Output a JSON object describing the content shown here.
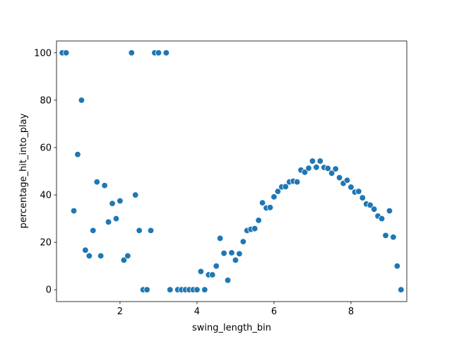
{
  "chart_data": {
    "type": "scatter",
    "xlabel": "swing_length_bin",
    "ylabel": "percentage_hit_into_play",
    "xlim": [
      0.35,
      9.45
    ],
    "ylim": [
      -5,
      105
    ],
    "x_ticks": [
      2,
      4,
      6,
      8
    ],
    "y_ticks": [
      0,
      20,
      40,
      60,
      80,
      100
    ],
    "grid": false,
    "marker_color": "#1f77b4",
    "marker_edge": "#ffffff",
    "points": [
      {
        "x": 0.5,
        "y": 100
      },
      {
        "x": 0.6,
        "y": 100
      },
      {
        "x": 0.8,
        "y": 33.3
      },
      {
        "x": 0.9,
        "y": 57.1
      },
      {
        "x": 1.0,
        "y": 80
      },
      {
        "x": 1.1,
        "y": 16.7
      },
      {
        "x": 1.2,
        "y": 14.3
      },
      {
        "x": 1.3,
        "y": 25
      },
      {
        "x": 1.4,
        "y": 45.5
      },
      {
        "x": 1.5,
        "y": 14.3
      },
      {
        "x": 1.6,
        "y": 44
      },
      {
        "x": 1.7,
        "y": 28.6
      },
      {
        "x": 1.8,
        "y": 36.4
      },
      {
        "x": 1.9,
        "y": 30
      },
      {
        "x": 2.0,
        "y": 37.5
      },
      {
        "x": 2.1,
        "y": 12.5
      },
      {
        "x": 2.2,
        "y": 14.3
      },
      {
        "x": 2.3,
        "y": 100
      },
      {
        "x": 2.4,
        "y": 40
      },
      {
        "x": 2.5,
        "y": 25
      },
      {
        "x": 2.6,
        "y": 0
      },
      {
        "x": 2.7,
        "y": 0
      },
      {
        "x": 2.8,
        "y": 25
      },
      {
        "x": 2.9,
        "y": 100
      },
      {
        "x": 3.0,
        "y": 100
      },
      {
        "x": 3.2,
        "y": 100
      },
      {
        "x": 3.3,
        "y": 0
      },
      {
        "x": 3.5,
        "y": 0
      },
      {
        "x": 3.6,
        "y": 0
      },
      {
        "x": 3.7,
        "y": 0
      },
      {
        "x": 3.8,
        "y": 0
      },
      {
        "x": 3.9,
        "y": 0
      },
      {
        "x": 4.0,
        "y": 0
      },
      {
        "x": 4.1,
        "y": 7.7
      },
      {
        "x": 4.2,
        "y": 0
      },
      {
        "x": 4.3,
        "y": 6.3
      },
      {
        "x": 4.4,
        "y": 6.3
      },
      {
        "x": 4.5,
        "y": 10
      },
      {
        "x": 4.6,
        "y": 21.7
      },
      {
        "x": 4.7,
        "y": 15.4
      },
      {
        "x": 4.8,
        "y": 4
      },
      {
        "x": 4.9,
        "y": 15.6
      },
      {
        "x": 5.0,
        "y": 12.5
      },
      {
        "x": 5.1,
        "y": 15.2
      },
      {
        "x": 5.2,
        "y": 20.3
      },
      {
        "x": 5.3,
        "y": 25
      },
      {
        "x": 5.4,
        "y": 25.5
      },
      {
        "x": 5.5,
        "y": 25.8
      },
      {
        "x": 5.6,
        "y": 29.3
      },
      {
        "x": 5.7,
        "y": 36.7
      },
      {
        "x": 5.8,
        "y": 34.5
      },
      {
        "x": 5.9,
        "y": 34.7
      },
      {
        "x": 6.0,
        "y": 39.2
      },
      {
        "x": 6.1,
        "y": 41.5
      },
      {
        "x": 6.2,
        "y": 43.4
      },
      {
        "x": 6.3,
        "y": 43.5
      },
      {
        "x": 6.4,
        "y": 45.5
      },
      {
        "x": 6.5,
        "y": 45.8
      },
      {
        "x": 6.6,
        "y": 45.5
      },
      {
        "x": 6.7,
        "y": 50.5
      },
      {
        "x": 6.8,
        "y": 49.6
      },
      {
        "x": 6.9,
        "y": 51.3
      },
      {
        "x": 7.0,
        "y": 54.3
      },
      {
        "x": 7.1,
        "y": 51.7
      },
      {
        "x": 7.2,
        "y": 54.3
      },
      {
        "x": 7.3,
        "y": 51.6
      },
      {
        "x": 7.4,
        "y": 51.2
      },
      {
        "x": 7.5,
        "y": 49.2
      },
      {
        "x": 7.6,
        "y": 51
      },
      {
        "x": 7.7,
        "y": 47.3
      },
      {
        "x": 7.8,
        "y": 44.9
      },
      {
        "x": 7.9,
        "y": 46.2
      },
      {
        "x": 8.0,
        "y": 43.3
      },
      {
        "x": 8.1,
        "y": 41.2
      },
      {
        "x": 8.2,
        "y": 41.5
      },
      {
        "x": 8.3,
        "y": 38.8
      },
      {
        "x": 8.4,
        "y": 36.2
      },
      {
        "x": 8.5,
        "y": 35.7
      },
      {
        "x": 8.6,
        "y": 34
      },
      {
        "x": 8.7,
        "y": 31.1
      },
      {
        "x": 8.8,
        "y": 30
      },
      {
        "x": 8.9,
        "y": 22.9
      },
      {
        "x": 9.0,
        "y": 33.3
      },
      {
        "x": 9.1,
        "y": 22.2
      },
      {
        "x": 9.2,
        "y": 10
      },
      {
        "x": 9.3,
        "y": 0
      }
    ]
  }
}
